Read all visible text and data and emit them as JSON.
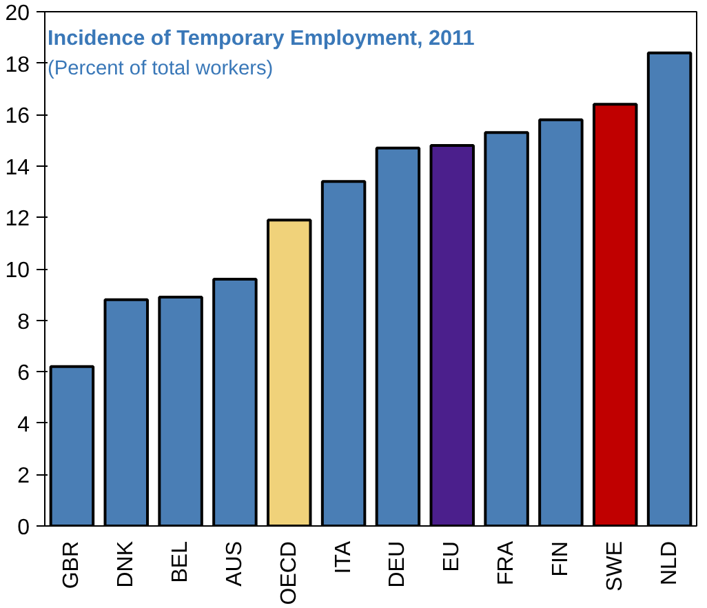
{
  "chart_data": {
    "type": "bar",
    "title": "Incidence of Temporary Employment, 2011",
    "subtitle": "(Percent of total workers)",
    "categories": [
      "GBR",
      "DNK",
      "BEL",
      "AUS",
      "OECD",
      "ITA",
      "DEU",
      "EU",
      "FRA",
      "FIN",
      "SWE",
      "NLD"
    ],
    "values": [
      6.2,
      8.8,
      8.9,
      9.6,
      11.9,
      13.4,
      14.7,
      14.8,
      15.3,
      15.8,
      16.4,
      18.4
    ],
    "colors": [
      "#4a7eb5",
      "#4a7eb5",
      "#4a7eb5",
      "#4a7eb5",
      "#f0d27a",
      "#4a7eb5",
      "#4a7eb5",
      "#4b1f8c",
      "#4a7eb5",
      "#4a7eb5",
      "#c00000",
      "#4a7eb5"
    ],
    "ylim": [
      0,
      20
    ],
    "yticks": [
      0,
      2,
      4,
      6,
      8,
      10,
      12,
      14,
      16,
      18,
      20
    ],
    "grid": false
  }
}
